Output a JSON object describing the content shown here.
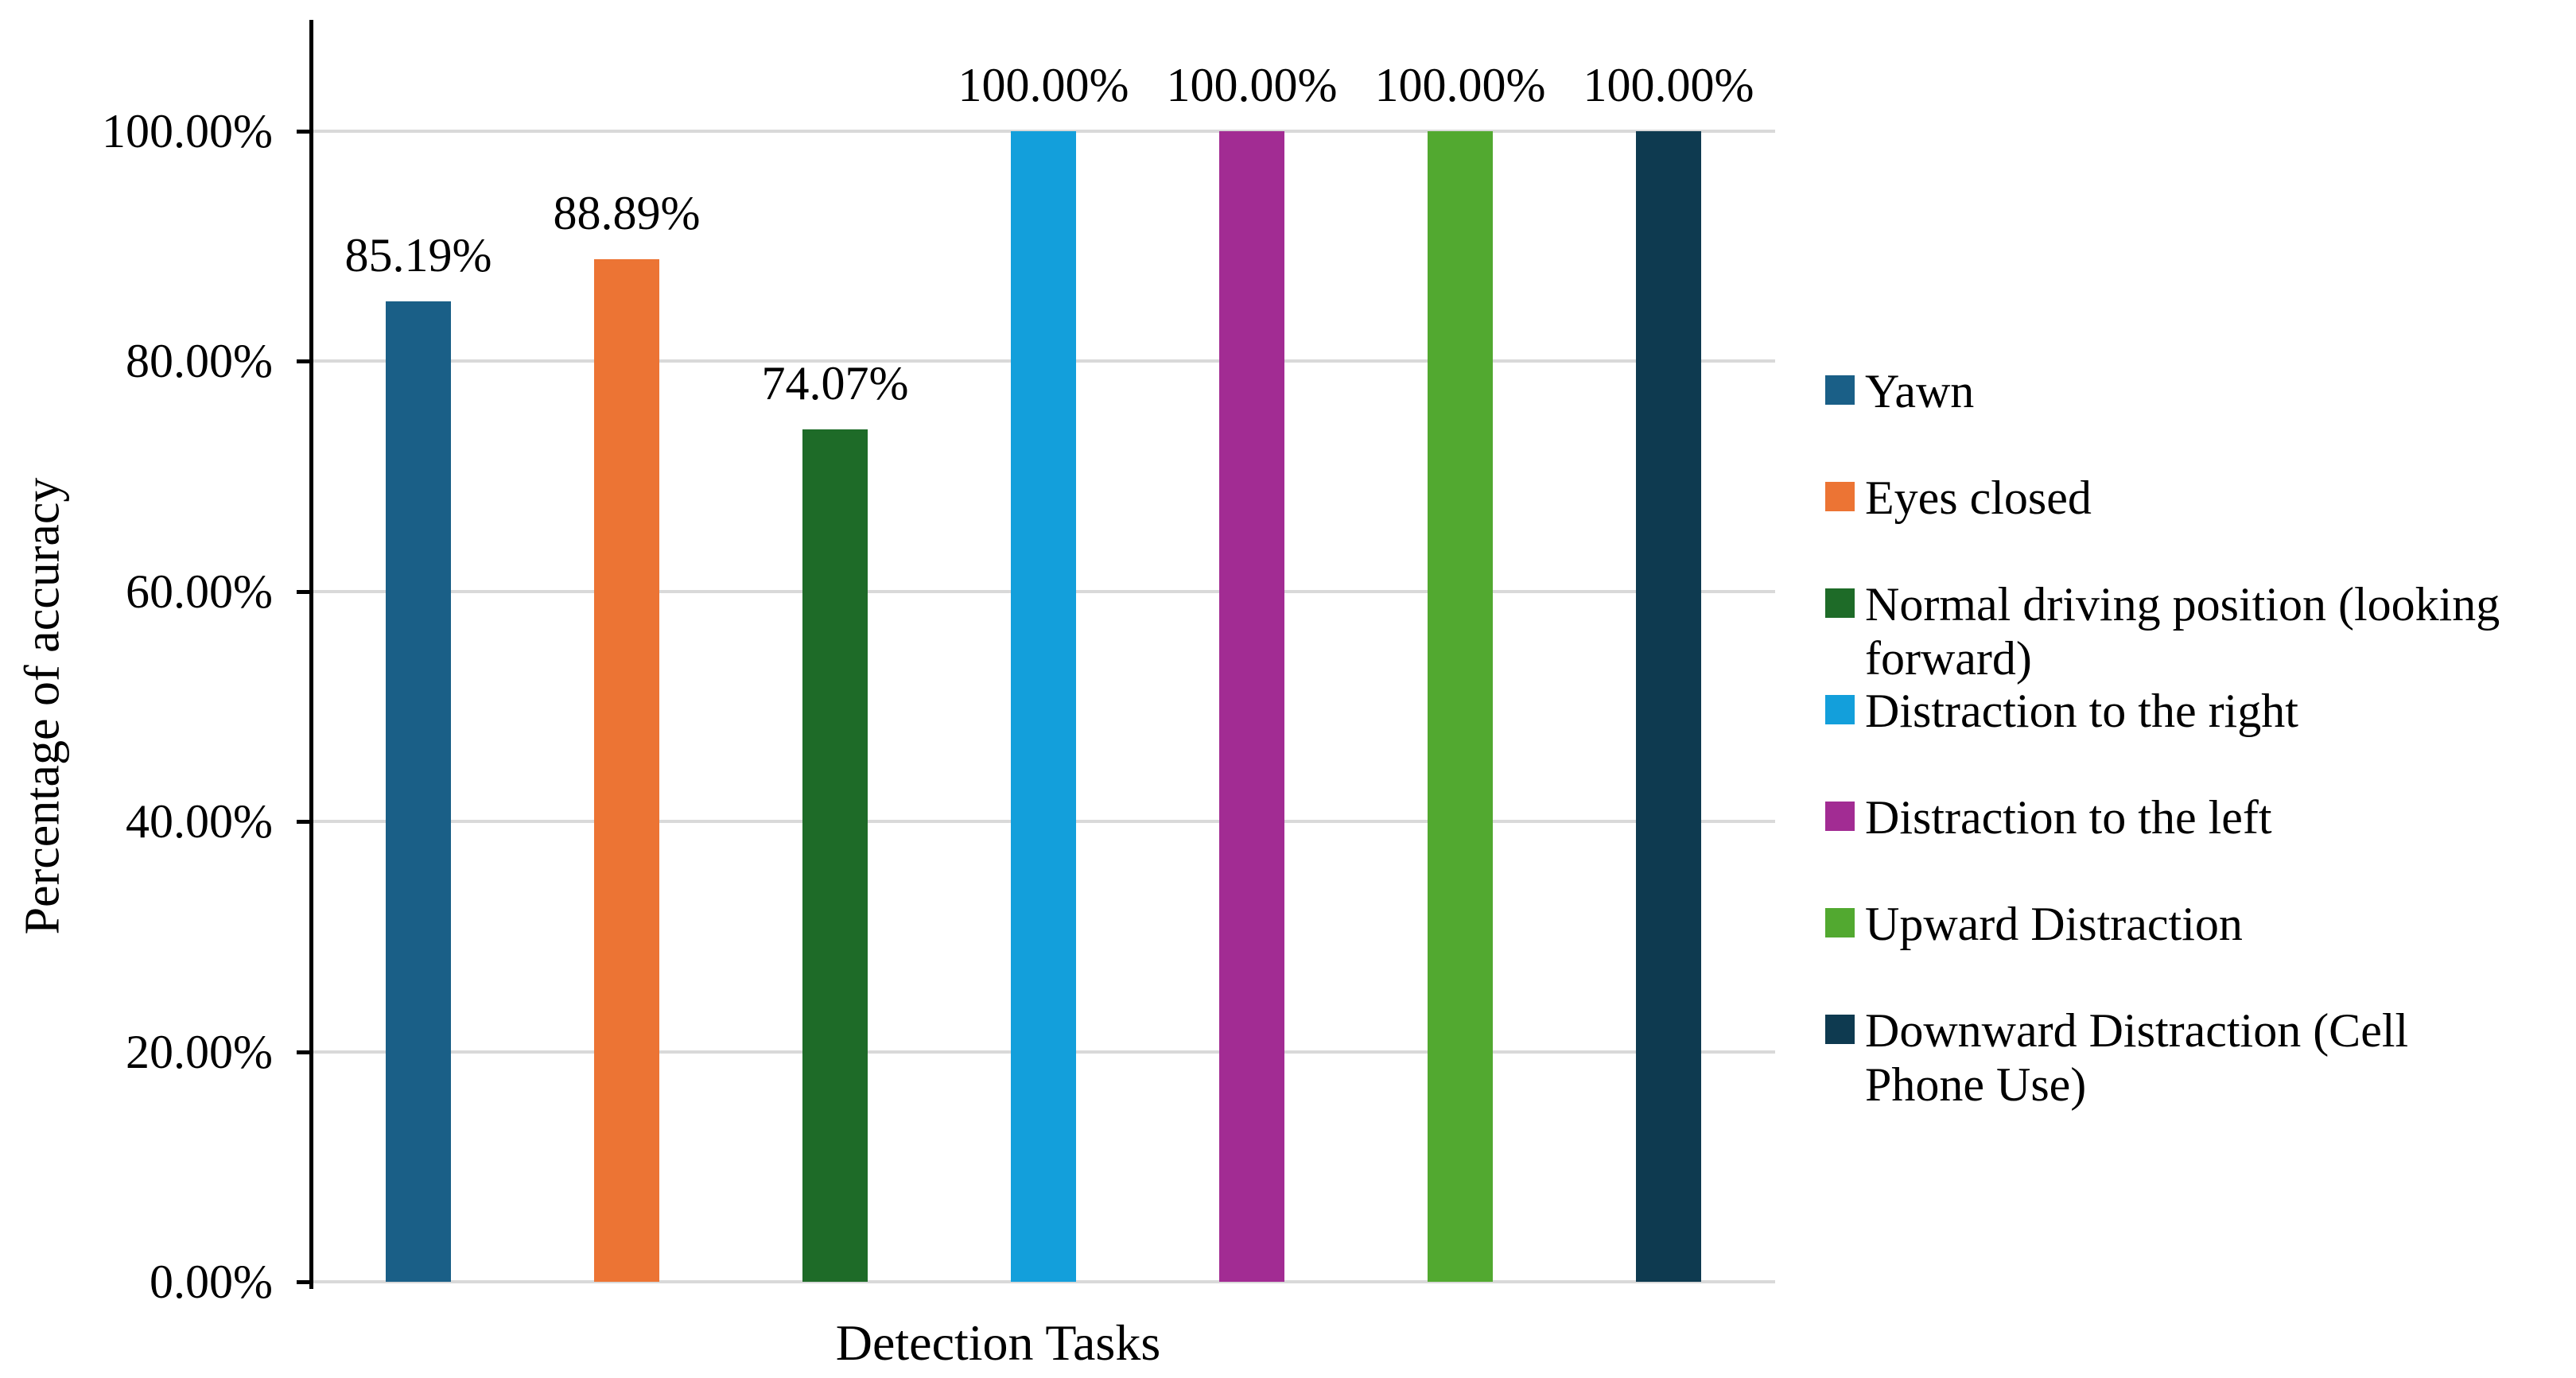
{
  "figure": {
    "background": "#FFFFFF"
  },
  "chart_data": {
    "type": "bar",
    "title": "",
    "xlabel": "Detection Tasks",
    "ylabel": "Percentage of accuracy",
    "categories": [
      "Yawn",
      "Eyes closed",
      "Normal driving position (looking forward)",
      "Distraction to the right",
      "Distraction to the left",
      "Upward Distraction",
      "Downward Distraction (Cell Phone Use)"
    ],
    "values": [
      85.19,
      88.89,
      74.07,
      100.0,
      100.0,
      100.0,
      100.0
    ],
    "bar_labels": [
      "85.19%",
      "88.89%",
      "74.07%",
      "100.00%",
      "100.00%",
      "100.00%",
      "100.00%"
    ],
    "colors": [
      "#1A5F87",
      "#EC7434",
      "#1E6B28",
      "#139FDB",
      "#A22C93",
      "#52A930",
      "#0E3A50"
    ],
    "ylim": [
      0,
      100
    ],
    "y_ticks": [
      {
        "value": 0,
        "label": "0.00%"
      },
      {
        "value": 20,
        "label": "20.00%"
      },
      {
        "value": 40,
        "label": "40.00%"
      },
      {
        "value": 60,
        "label": "60.00%"
      },
      {
        "value": 80,
        "label": "80.00%"
      },
      {
        "value": 100,
        "label": "100.00%"
      }
    ],
    "grid": "horizontal",
    "gridline_color": "#D9D9D9",
    "axis_color": "#000000",
    "legend_position": "right",
    "legend_items": [
      {
        "label": "Yawn",
        "lines": [
          "Yawn"
        ],
        "color": "#1A5F87"
      },
      {
        "label": "Eyes closed",
        "lines": [
          "Eyes closed"
        ],
        "color": "#EC7434"
      },
      {
        "label": "Normal driving position (looking forward)",
        "lines": [
          "Normal driving position (looking",
          "forward)"
        ],
        "color": "#1E6B28"
      },
      {
        "label": "Distraction to the right",
        "lines": [
          "Distraction to the right"
        ],
        "color": "#139FDB"
      },
      {
        "label": "Distraction to the left",
        "lines": [
          "Distraction to the left"
        ],
        "color": "#A22C93"
      },
      {
        "label": "Upward Distraction",
        "lines": [
          "Upward Distraction"
        ],
        "color": "#52A930"
      },
      {
        "label": "Downward Distraction (Cell Phone Use)",
        "lines": [
          "Downward Distraction (Cell",
          "Phone Use)"
        ],
        "color": "#0E3A50"
      }
    ]
  }
}
